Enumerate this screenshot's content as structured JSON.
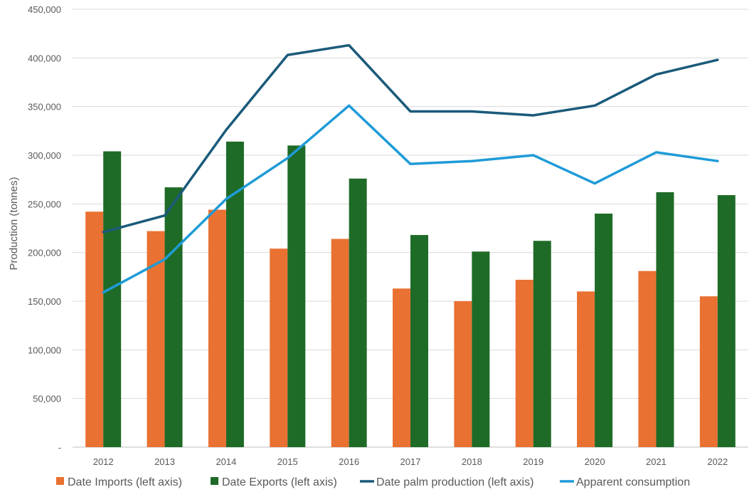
{
  "chart_data": {
    "type": "bar",
    "ylabel": "Production (tonnes)",
    "ylim": [
      0,
      450000
    ],
    "yticks": [
      0,
      50000,
      100000,
      150000,
      200000,
      250000,
      300000,
      350000,
      400000,
      450000
    ],
    "ytick_labels": [
      "-",
      "50,000",
      "100,000",
      "150,000",
      "200,000",
      "250,000",
      "300,000",
      "350,000",
      "400,000",
      "450,000"
    ],
    "categories": [
      "2012",
      "2013",
      "2014",
      "2015",
      "2016",
      "2017",
      "2018",
      "2019",
      "2020",
      "2021",
      "2022"
    ],
    "grid": true,
    "legend_position": "bottom",
    "series": [
      {
        "name": "Date Imports (left axis)",
        "type": "bar",
        "color": "#E97132",
        "values": [
          242000,
          222000,
          244000,
          204000,
          214000,
          163000,
          150000,
          172000,
          160000,
          181000,
          155000
        ]
      },
      {
        "name": "Date Exports (left axis)",
        "type": "bar",
        "color": "#1E6B28",
        "values": [
          304000,
          267000,
          314000,
          310000,
          276000,
          218000,
          201000,
          212000,
          240000,
          262000,
          259000
        ]
      },
      {
        "name": "Date palm production (left axis)",
        "type": "line",
        "color": "#1A5A7A",
        "values": [
          221000,
          238000,
          326000,
          403000,
          413000,
          345000,
          345000,
          341000,
          351000,
          383000,
          398000
        ]
      },
      {
        "name": "Apparent consumption",
        "type": "line",
        "color": "#1F9BD7",
        "values": [
          159000,
          193000,
          255000,
          297000,
          351000,
          291000,
          294000,
          300000,
          271000,
          303000,
          294000
        ]
      }
    ]
  }
}
